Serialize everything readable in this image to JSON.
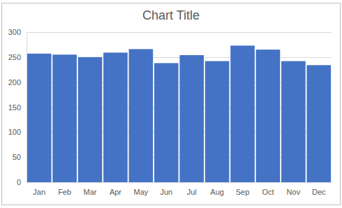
{
  "chart_data": {
    "type": "bar",
    "title": "Chart Title",
    "categories": [
      "Jan",
      "Feb",
      "Mar",
      "Apr",
      "May",
      "Jun",
      "Jul",
      "Aug",
      "Sep",
      "Oct",
      "Nov",
      "Dec"
    ],
    "values": [
      257,
      255,
      250,
      259,
      266,
      238,
      254,
      242,
      273,
      265,
      242,
      234
    ],
    "color": "#4472c4",
    "ylim": [
      0,
      300
    ],
    "yticks": [
      0,
      50,
      100,
      150,
      200,
      250,
      300
    ],
    "grid": true
  }
}
